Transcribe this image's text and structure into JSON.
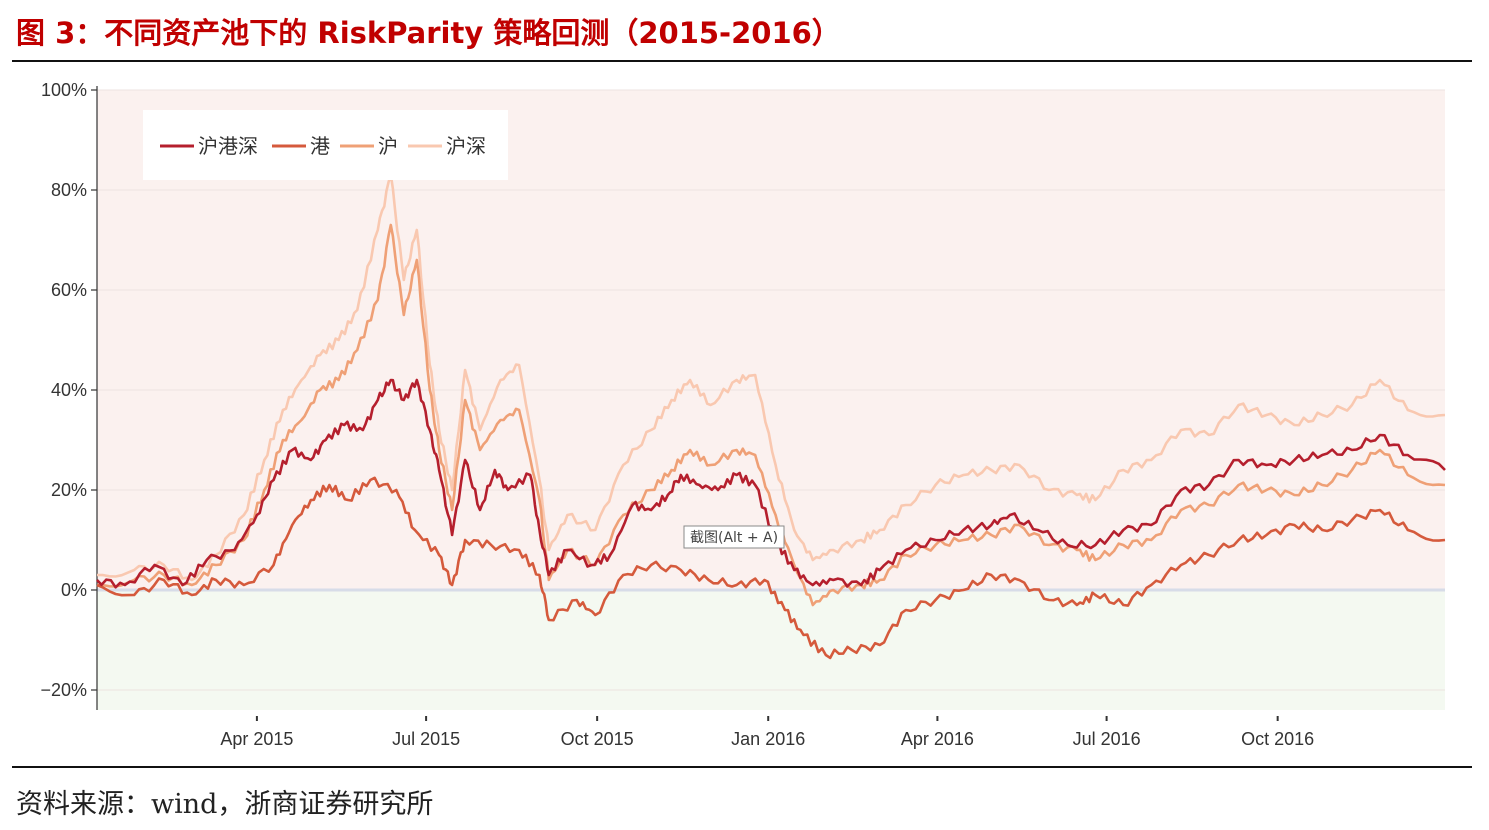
{
  "figure": {
    "title": "图  3：不同资产池下的 RiskParity 策略回测（2015-2016）",
    "source": "资料来源：wind，浙商证券研究所",
    "tooltip": "截图(Alt + A)"
  },
  "chart_data": {
    "type": "line",
    "title": "",
    "xlabel": "",
    "ylabel": "",
    "x_range": [
      "2015-01-05",
      "2016-12-30"
    ],
    "ylim": [
      -0.24,
      1.0
    ],
    "y_ticks": [
      -0.2,
      0,
      0.2,
      0.4,
      0.6,
      0.8,
      1.0
    ],
    "y_tick_labels": [
      "−20%",
      "0%",
      "20%",
      "40%",
      "60%",
      "80%",
      "100%"
    ],
    "x_ticks": [
      "2015-04-01",
      "2015-07-01",
      "2015-10-01",
      "2016-01-01",
      "2016-04-01",
      "2016-07-01",
      "2016-10-01"
    ],
    "x_tick_labels": [
      "Apr 2015",
      "Jul 2015",
      "Oct 2015",
      "Jan 2016",
      "Apr 2016",
      "Jul 2016",
      "Oct 2016"
    ],
    "grid": true,
    "legend_position": "top-left",
    "background": {
      "positive": "#fbf1ef",
      "negative": "#f4f9f1",
      "zero_line": "#d7dce8"
    },
    "series": [
      {
        "name": "沪港深",
        "color": "#b51f2d",
        "points": [
          [
            "2015-01-05",
            0.02
          ],
          [
            "2015-01-20",
            0.01
          ],
          [
            "2015-02-05",
            0.05
          ],
          [
            "2015-02-20",
            0.01
          ],
          [
            "2015-03-05",
            0.06
          ],
          [
            "2015-03-20",
            0.08
          ],
          [
            "2015-04-01",
            0.15
          ],
          [
            "2015-04-10",
            0.22
          ],
          [
            "2015-04-20",
            0.28
          ],
          [
            "2015-04-30",
            0.26
          ],
          [
            "2015-05-08",
            0.3
          ],
          [
            "2015-05-18",
            0.33
          ],
          [
            "2015-05-28",
            0.32
          ],
          [
            "2015-06-05",
            0.38
          ],
          [
            "2015-06-12",
            0.42
          ],
          [
            "2015-06-19",
            0.38
          ],
          [
            "2015-06-26",
            0.42
          ],
          [
            "2015-07-03",
            0.32
          ],
          [
            "2015-07-08",
            0.24
          ],
          [
            "2015-07-15",
            0.11
          ],
          [
            "2015-07-22",
            0.26
          ],
          [
            "2015-07-30",
            0.16
          ],
          [
            "2015-08-07",
            0.24
          ],
          [
            "2015-08-14",
            0.2
          ],
          [
            "2015-08-26",
            0.23
          ],
          [
            "2015-08-31",
            0.12
          ],
          [
            "2015-09-05",
            0.03
          ],
          [
            "2015-09-15",
            0.08
          ],
          [
            "2015-09-28",
            0.05
          ],
          [
            "2015-10-08",
            0.07
          ],
          [
            "2015-10-20",
            0.17
          ],
          [
            "2015-10-30",
            0.16
          ],
          [
            "2015-11-08",
            0.19
          ],
          [
            "2015-11-15",
            0.23
          ],
          [
            "2015-11-25",
            0.21
          ],
          [
            "2015-12-05",
            0.2
          ],
          [
            "2015-12-15",
            0.23
          ],
          [
            "2015-12-25",
            0.21
          ],
          [
            "2016-01-05",
            0.1
          ],
          [
            "2016-01-15",
            0.04
          ],
          [
            "2016-01-25",
            0.01
          ],
          [
            "2016-02-05",
            0.02
          ],
          [
            "2016-02-20",
            0.01
          ],
          [
            "2016-03-01",
            0.04
          ],
          [
            "2016-03-15",
            0.08
          ],
          [
            "2016-03-31",
            0.1
          ],
          [
            "2016-04-15",
            0.12
          ],
          [
            "2016-04-30",
            0.13
          ],
          [
            "2016-05-10",
            0.15
          ],
          [
            "2016-05-25",
            0.12
          ],
          [
            "2016-06-10",
            0.09
          ],
          [
            "2016-06-25",
            0.09
          ],
          [
            "2016-07-10",
            0.12
          ],
          [
            "2016-07-25",
            0.13
          ],
          [
            "2016-08-10",
            0.2
          ],
          [
            "2016-08-25",
            0.21
          ],
          [
            "2016-09-10",
            0.26
          ],
          [
            "2016-09-25",
            0.25
          ],
          [
            "2016-10-10",
            0.26
          ],
          [
            "2016-10-25",
            0.27
          ],
          [
            "2016-11-10",
            0.28
          ],
          [
            "2016-11-25",
            0.31
          ],
          [
            "2016-12-10",
            0.27
          ],
          [
            "2016-12-30",
            0.24
          ]
        ]
      },
      {
        "name": "港",
        "color": "#d55a3c",
        "points": [
          [
            "2015-01-05",
            0.01
          ],
          [
            "2015-01-25",
            -0.01
          ],
          [
            "2015-02-10",
            0.02
          ],
          [
            "2015-02-25",
            -0.01
          ],
          [
            "2015-03-10",
            0.02
          ],
          [
            "2015-03-25",
            0.01
          ],
          [
            "2015-04-10",
            0.05
          ],
          [
            "2015-04-20",
            0.13
          ],
          [
            "2015-04-30",
            0.18
          ],
          [
            "2015-05-10",
            0.21
          ],
          [
            "2015-05-20",
            0.18
          ],
          [
            "2015-06-01",
            0.22
          ],
          [
            "2015-06-15",
            0.2
          ],
          [
            "2015-06-25",
            0.12
          ],
          [
            "2015-07-08",
            0.07
          ],
          [
            "2015-07-15",
            0.01
          ],
          [
            "2015-07-22",
            0.1
          ],
          [
            "2015-08-05",
            0.09
          ],
          [
            "2015-08-20",
            0.08
          ],
          [
            "2015-08-31",
            0.03
          ],
          [
            "2015-09-05",
            -0.06
          ],
          [
            "2015-09-20",
            -0.02
          ],
          [
            "2015-09-30",
            -0.05
          ],
          [
            "2015-10-15",
            0.03
          ],
          [
            "2015-10-30",
            0.05
          ],
          [
            "2015-11-15",
            0.04
          ],
          [
            "2015-11-30",
            0.02
          ],
          [
            "2015-12-15",
            0.01
          ],
          [
            "2015-12-30",
            0.02
          ],
          [
            "2016-01-10",
            -0.04
          ],
          [
            "2016-01-20",
            -0.09
          ],
          [
            "2016-02-01",
            -0.13
          ],
          [
            "2016-02-15",
            -0.12
          ],
          [
            "2016-03-01",
            -0.11
          ],
          [
            "2016-03-15",
            -0.04
          ],
          [
            "2016-03-31",
            -0.02
          ],
          [
            "2016-04-15",
            0.0
          ],
          [
            "2016-04-30",
            0.03
          ],
          [
            "2016-05-15",
            0.02
          ],
          [
            "2016-05-31",
            -0.02
          ],
          [
            "2016-06-15",
            -0.03
          ],
          [
            "2016-06-25",
            -0.01
          ],
          [
            "2016-07-10",
            -0.03
          ],
          [
            "2016-07-25",
            0.01
          ],
          [
            "2016-08-10",
            0.05
          ],
          [
            "2016-08-25",
            0.07
          ],
          [
            "2016-09-10",
            0.1
          ],
          [
            "2016-09-25",
            0.11
          ],
          [
            "2016-10-10",
            0.13
          ],
          [
            "2016-10-25",
            0.12
          ],
          [
            "2016-11-10",
            0.14
          ],
          [
            "2016-11-25",
            0.16
          ],
          [
            "2016-12-10",
            0.12
          ],
          [
            "2016-12-30",
            0.1
          ]
        ]
      },
      {
        "name": "沪",
        "color": "#efa076",
        "points": [
          [
            "2015-01-05",
            0.01
          ],
          [
            "2015-01-25",
            0.02
          ],
          [
            "2015-02-10",
            0.03
          ],
          [
            "2015-02-25",
            0.01
          ],
          [
            "2015-03-10",
            0.05
          ],
          [
            "2015-03-25",
            0.1
          ],
          [
            "2015-04-05",
            0.2
          ],
          [
            "2015-04-15",
            0.3
          ],
          [
            "2015-04-25",
            0.34
          ],
          [
            "2015-05-05",
            0.4
          ],
          [
            "2015-05-15",
            0.42
          ],
          [
            "2015-05-25",
            0.48
          ],
          [
            "2015-06-05",
            0.58
          ],
          [
            "2015-06-12",
            0.73
          ],
          [
            "2015-06-19",
            0.55
          ],
          [
            "2015-06-26",
            0.66
          ],
          [
            "2015-07-03",
            0.4
          ],
          [
            "2015-07-08",
            0.28
          ],
          [
            "2015-07-15",
            0.16
          ],
          [
            "2015-07-22",
            0.38
          ],
          [
            "2015-07-30",
            0.28
          ],
          [
            "2015-08-10",
            0.34
          ],
          [
            "2015-08-20",
            0.36
          ],
          [
            "2015-08-31",
            0.18
          ],
          [
            "2015-09-05",
            0.02
          ],
          [
            "2015-09-15",
            0.08
          ],
          [
            "2015-09-30",
            0.05
          ],
          [
            "2015-10-15",
            0.15
          ],
          [
            "2015-10-30",
            0.2
          ],
          [
            "2015-11-10",
            0.24
          ],
          [
            "2015-11-20",
            0.28
          ],
          [
            "2015-12-01",
            0.25
          ],
          [
            "2015-12-15",
            0.28
          ],
          [
            "2015-12-25",
            0.27
          ],
          [
            "2016-01-05",
            0.15
          ],
          [
            "2016-01-15",
            0.05
          ],
          [
            "2016-01-25",
            -0.03
          ],
          [
            "2016-02-05",
            0.0
          ],
          [
            "2016-02-20",
            0.01
          ],
          [
            "2016-03-01",
            0.02
          ],
          [
            "2016-03-15",
            0.07
          ],
          [
            "2016-03-31",
            0.09
          ],
          [
            "2016-04-15",
            0.1
          ],
          [
            "2016-04-30",
            0.11
          ],
          [
            "2016-05-15",
            0.13
          ],
          [
            "2016-05-31",
            0.09
          ],
          [
            "2016-06-15",
            0.08
          ],
          [
            "2016-06-25",
            0.06
          ],
          [
            "2016-07-10",
            0.09
          ],
          [
            "2016-07-25",
            0.1
          ],
          [
            "2016-08-10",
            0.16
          ],
          [
            "2016-08-25",
            0.17
          ],
          [
            "2016-09-10",
            0.21
          ],
          [
            "2016-09-25",
            0.2
          ],
          [
            "2016-10-10",
            0.19
          ],
          [
            "2016-10-25",
            0.21
          ],
          [
            "2016-11-10",
            0.24
          ],
          [
            "2016-11-25",
            0.28
          ],
          [
            "2016-12-10",
            0.23
          ],
          [
            "2016-12-30",
            0.21
          ]
        ]
      },
      {
        "name": "沪深",
        "color": "#f9c8b0",
        "points": [
          [
            "2015-01-05",
            0.03
          ],
          [
            "2015-01-25",
            0.04
          ],
          [
            "2015-02-10",
            0.05
          ],
          [
            "2015-02-25",
            0.02
          ],
          [
            "2015-03-10",
            0.07
          ],
          [
            "2015-03-25",
            0.15
          ],
          [
            "2015-04-05",
            0.26
          ],
          [
            "2015-04-15",
            0.36
          ],
          [
            "2015-04-25",
            0.42
          ],
          [
            "2015-05-05",
            0.47
          ],
          [
            "2015-05-15",
            0.5
          ],
          [
            "2015-05-25",
            0.56
          ],
          [
            "2015-06-05",
            0.72
          ],
          [
            "2015-06-12",
            0.83
          ],
          [
            "2015-06-19",
            0.62
          ],
          [
            "2015-06-26",
            0.72
          ],
          [
            "2015-07-03",
            0.45
          ],
          [
            "2015-07-08",
            0.32
          ],
          [
            "2015-07-15",
            0.2
          ],
          [
            "2015-07-22",
            0.44
          ],
          [
            "2015-07-30",
            0.32
          ],
          [
            "2015-08-10",
            0.42
          ],
          [
            "2015-08-20",
            0.45
          ],
          [
            "2015-08-31",
            0.22
          ],
          [
            "2015-09-05",
            0.08
          ],
          [
            "2015-09-15",
            0.15
          ],
          [
            "2015-09-30",
            0.12
          ],
          [
            "2015-10-15",
            0.25
          ],
          [
            "2015-10-30",
            0.32
          ],
          [
            "2015-11-10",
            0.38
          ],
          [
            "2015-11-20",
            0.42
          ],
          [
            "2015-12-01",
            0.37
          ],
          [
            "2015-12-15",
            0.42
          ],
          [
            "2015-12-25",
            0.43
          ],
          [
            "2016-01-05",
            0.25
          ],
          [
            "2016-01-15",
            0.12
          ],
          [
            "2016-01-25",
            0.06
          ],
          [
            "2016-02-05",
            0.08
          ],
          [
            "2016-02-20",
            0.1
          ],
          [
            "2016-03-01",
            0.12
          ],
          [
            "2016-03-15",
            0.17
          ],
          [
            "2016-03-31",
            0.21
          ],
          [
            "2016-04-15",
            0.23
          ],
          [
            "2016-04-30",
            0.24
          ],
          [
            "2016-05-15",
            0.25
          ],
          [
            "2016-05-31",
            0.2
          ],
          [
            "2016-06-15",
            0.19
          ],
          [
            "2016-06-25",
            0.18
          ],
          [
            "2016-07-10",
            0.24
          ],
          [
            "2016-07-25",
            0.26
          ],
          [
            "2016-08-10",
            0.32
          ],
          [
            "2016-08-25",
            0.31
          ],
          [
            "2016-09-10",
            0.37
          ],
          [
            "2016-09-25",
            0.35
          ],
          [
            "2016-10-10",
            0.33
          ],
          [
            "2016-10-25",
            0.35
          ],
          [
            "2016-11-10",
            0.37
          ],
          [
            "2016-11-25",
            0.42
          ],
          [
            "2016-12-10",
            0.36
          ],
          [
            "2016-12-30",
            0.35
          ]
        ]
      }
    ]
  }
}
